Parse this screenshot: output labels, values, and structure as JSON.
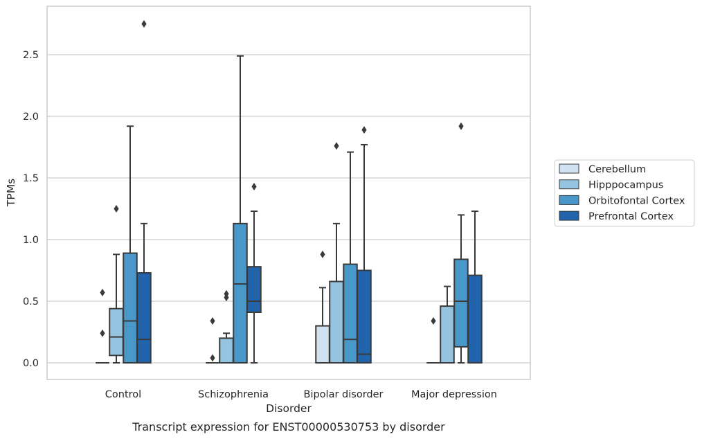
{
  "chart_data": {
    "type": "box",
    "xlabel": "Disorder",
    "ylabel": "TPMs",
    "caption": "Transcript expression for ENST00000530753 by disorder",
    "ylim": [
      -0.13,
      2.89
    ],
    "yticks": [
      0.0,
      0.5,
      1.0,
      1.5,
      2.0,
      2.5
    ],
    "ytick_labels": [
      "0.0",
      "0.5",
      "1.0",
      "1.5",
      "2.0",
      "2.5"
    ],
    "grid": "horizontal",
    "legend_position": "right",
    "categories": [
      "Control",
      "Schizophrenia",
      "Bipolar disorder",
      "Major depression"
    ],
    "series": [
      {
        "name": "Cerebellum",
        "color": "#d0e1f2",
        "boxes": [
          {
            "category": "Control",
            "whisker_low": 0.0,
            "q1": 0.0,
            "median": 0.0,
            "q3": 0.0,
            "whisker_high": 0.0,
            "outliers": [
              0.57,
              0.24
            ]
          },
          {
            "category": "Schizophrenia",
            "whisker_low": 0.0,
            "q1": 0.0,
            "median": 0.0,
            "q3": 0.0,
            "whisker_high": 0.0,
            "outliers": [
              0.34,
              0.04
            ]
          },
          {
            "category": "Bipolar disorder",
            "whisker_low": 0.0,
            "q1": 0.0,
            "median": 0.0,
            "q3": 0.3,
            "whisker_high": 0.61,
            "outliers": [
              0.88
            ]
          },
          {
            "category": "Major depression",
            "whisker_low": 0.0,
            "q1": 0.0,
            "median": 0.0,
            "q3": 0.0,
            "whisker_high": 0.0,
            "outliers": [
              0.34
            ]
          }
        ]
      },
      {
        "name": "Hipppocampus",
        "color": "#94c4df",
        "boxes": [
          {
            "category": "Control",
            "whisker_low": 0.0,
            "q1": 0.06,
            "median": 0.21,
            "q3": 0.44,
            "whisker_high": 0.88,
            "outliers": [
              1.25
            ]
          },
          {
            "category": "Schizophrenia",
            "whisker_low": 0.0,
            "q1": 0.0,
            "median": 0.0,
            "q3": 0.2,
            "whisker_high": 0.24,
            "outliers": [
              0.56,
              0.53
            ]
          },
          {
            "category": "Bipolar disorder",
            "whisker_low": 0.0,
            "q1": 0.0,
            "median": 0.0,
            "q3": 0.66,
            "whisker_high": 1.13,
            "outliers": [
              1.76
            ]
          },
          {
            "category": "Major depression",
            "whisker_low": 0.0,
            "q1": 0.0,
            "median": 0.0,
            "q3": 0.46,
            "whisker_high": 0.62,
            "outliers": []
          }
        ]
      },
      {
        "name": "Orbitofontal Cortex",
        "color": "#4a98c9",
        "boxes": [
          {
            "category": "Control",
            "whisker_low": 0.0,
            "q1": 0.0,
            "median": 0.34,
            "q3": 0.89,
            "whisker_high": 1.92,
            "outliers": []
          },
          {
            "category": "Schizophrenia",
            "whisker_low": 0.0,
            "q1": 0.0,
            "median": 0.64,
            "q3": 1.13,
            "whisker_high": 2.49,
            "outliers": []
          },
          {
            "category": "Bipolar disorder",
            "whisker_low": 0.0,
            "q1": 0.0,
            "median": 0.19,
            "q3": 0.8,
            "whisker_high": 1.71,
            "outliers": []
          },
          {
            "category": "Major depression",
            "whisker_low": 0.0,
            "q1": 0.13,
            "median": 0.5,
            "q3": 0.84,
            "whisker_high": 1.2,
            "outliers": [
              1.92
            ]
          }
        ]
      },
      {
        "name": "Prefrontal Cortex",
        "color": "#2164ab",
        "boxes": [
          {
            "category": "Control",
            "whisker_low": 0.0,
            "q1": 0.0,
            "median": 0.19,
            "q3": 0.73,
            "whisker_high": 1.13,
            "outliers": [
              2.75
            ]
          },
          {
            "category": "Schizophrenia",
            "whisker_low": 0.0,
            "q1": 0.41,
            "median": 0.5,
            "q3": 0.78,
            "whisker_high": 1.23,
            "outliers": [
              1.43
            ]
          },
          {
            "category": "Bipolar disorder",
            "whisker_low": 0.0,
            "q1": 0.0,
            "median": 0.07,
            "q3": 0.75,
            "whisker_high": 1.77,
            "outliers": [
              1.89
            ]
          },
          {
            "category": "Major depression",
            "whisker_low": 0.0,
            "q1": 0.0,
            "median": 0.0,
            "q3": 0.71,
            "whisker_high": 1.23,
            "outliers": []
          }
        ]
      }
    ],
    "colors": {
      "grid": "#cccccc",
      "frame": "#cccccc",
      "line": "#3a3a3a",
      "text": "#262626"
    }
  }
}
